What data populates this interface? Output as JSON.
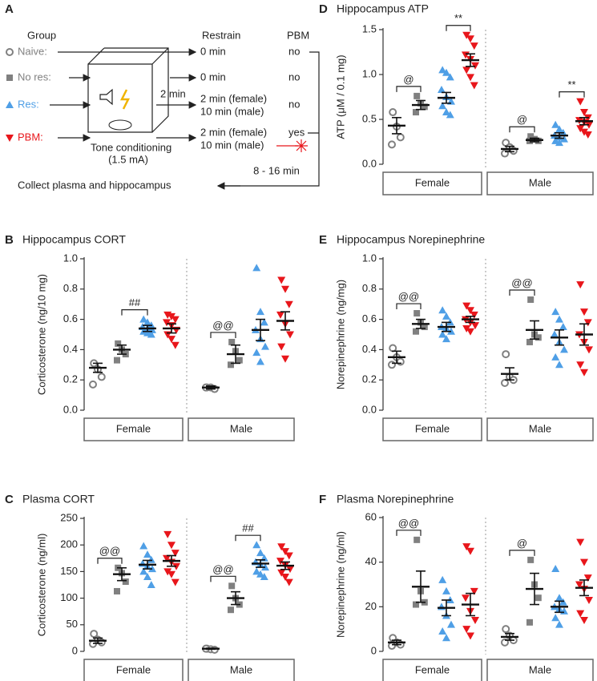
{
  "diagram": {
    "label": "A",
    "headers": {
      "group": "Group",
      "restrain": "Restrain",
      "pbm": "PBM"
    },
    "rows": [
      {
        "group": "Naive:",
        "restrain": [
          "0 min"
        ],
        "pbm": "no"
      },
      {
        "group": "No res:",
        "restrain": [
          "0 min"
        ],
        "pbm": "no"
      },
      {
        "group": "Res:",
        "restrain": [
          "2 min (female)",
          "10 min (male)"
        ],
        "pbm": "no"
      },
      {
        "group": "PBM:",
        "restrain": [
          "2 min (female)",
          "10 min (male)"
        ],
        "pbm": "yes"
      }
    ],
    "box_label": [
      "Tone conditioning",
      "(1.5 mA)"
    ],
    "transfer_time": "2 min",
    "wait_time": "8 - 16 min",
    "outcome": "Collect plasma and hippocampus"
  },
  "chart_data": [
    {
      "type": "dotplot",
      "label": "B",
      "title": "Hippocampus CORT",
      "y_label": "Corticosterone (ng/10 mg)",
      "categories": [
        "Female",
        "Male"
      ],
      "ylim": [
        0,
        1
      ],
      "yticks": [
        {
          "value": 0,
          "label": "0.0"
        },
        0.2,
        0.4,
        0.6,
        0.8,
        {
          "value": 1,
          "label": "1.0"
        }
      ],
      "series": [
        {
          "color": "#808080",
          "marker": "circle-open",
          "points": [
            [
              0.31,
              0.27,
              0.22,
              0.17
            ],
            [
              0.15,
              0.15,
              0.14,
              0.15
            ]
          ],
          "mean": [
            0.28,
            0.15
          ],
          "sem": [
            0.03,
            0.01
          ]
        },
        {
          "color": "#808080",
          "marker": "square",
          "points": [
            [
              0.44,
              0.4,
              0.37,
              0.33
            ],
            [
              0.45,
              0.39,
              0.33,
              0.3
            ]
          ],
          "mean": [
            0.4,
            0.37
          ],
          "sem": [
            0.03,
            0.06
          ]
        },
        {
          "color": "#4f9fe6",
          "marker": "triangle-up",
          "points": [
            [
              0.6,
              0.58,
              0.56,
              0.55,
              0.54,
              0.53,
              0.52,
              0.51,
              0.5
            ],
            [
              0.94,
              0.65,
              0.58,
              0.53,
              0.47,
              0.42,
              0.38,
              0.32
            ]
          ],
          "mean": [
            0.54,
            0.53
          ],
          "sem": [
            0.02,
            0.07
          ]
        },
        {
          "color": "#e8161b",
          "marker": "triangle-down",
          "points": [
            [
              0.63,
              0.62,
              0.6,
              0.58,
              0.56,
              0.53,
              0.5,
              0.47,
              0.43
            ],
            [
              0.86,
              0.8,
              0.7,
              0.63,
              0.57,
              0.5,
              0.42,
              0.34
            ]
          ],
          "mean": [
            0.54,
            0.59
          ],
          "sem": [
            0.03,
            0.06
          ]
        }
      ],
      "annotations": [
        {
          "text": "##",
          "category": 0,
          "between": [
            1,
            2
          ]
        },
        {
          "text": "@@",
          "category": 1,
          "between": [
            0,
            1
          ]
        }
      ]
    },
    {
      "type": "dotplot",
      "label": "C",
      "title": "Plasma CORT",
      "y_label": "Corticosterone (ng/ml)",
      "categories": [
        "Female",
        "Male"
      ],
      "ylim": [
        0,
        250
      ],
      "yticks": [
        0,
        50,
        100,
        150,
        200,
        250
      ],
      "series": [
        {
          "color": "#808080",
          "marker": "circle-open",
          "points": [
            [
              33,
              22,
              17,
              14
            ],
            [
              5,
              4,
              3,
              5
            ]
          ],
          "mean": [
            20,
            5
          ],
          "sem": [
            5,
            1
          ]
        },
        {
          "color": "#808080",
          "marker": "square",
          "points": [
            [
              157,
              147,
              131,
              113
            ],
            [
              123,
              100,
              88,
              78
            ]
          ],
          "mean": [
            145,
            100
          ],
          "sem": [
            12,
            12
          ]
        },
        {
          "color": "#4f9fe6",
          "marker": "triangle-up",
          "points": [
            [
              198,
              182,
              172,
              165,
              160,
              155,
              150,
              140,
              125
            ],
            [
              200,
              185,
              175,
              168,
              163,
              158,
              150,
              145,
              140
            ]
          ],
          "mean": [
            163,
            165
          ],
          "sem": [
            8,
            7
          ]
        },
        {
          "color": "#e8161b",
          "marker": "triangle-down",
          "points": [
            [
              220,
              200,
              185,
              175,
              168,
              160,
              150,
              145,
              130
            ],
            [
              197,
              188,
              180,
              170,
              162,
              155,
              148,
              140,
              130
            ]
          ],
          "mean": [
            170,
            161
          ],
          "sem": [
            10,
            7
          ]
        }
      ],
      "annotations": [
        {
          "text": "@@",
          "category": 0,
          "between": [
            0,
            1
          ]
        },
        {
          "text": "@@",
          "category": 1,
          "between": [
            0,
            1
          ]
        },
        {
          "text": "##",
          "category": 1,
          "between": [
            1,
            2
          ]
        }
      ]
    },
    {
      "type": "dotplot",
      "label": "D",
      "title": "Hippocampus ATP",
      "y_label": "ATP (μM / 0.1 mg)",
      "categories": [
        "Female",
        "Male"
      ],
      "ylim": [
        0,
        1.5
      ],
      "yticks": [
        {
          "value": 0,
          "label": "0.0"
        },
        0.5,
        {
          "value": 1,
          "label": "1.0"
        },
        1.5
      ],
      "series": [
        {
          "color": "#808080",
          "marker": "circle-open",
          "points": [
            [
              0.58,
              0.42,
              0.3,
              0.22
            ],
            [
              0.24,
              0.19,
              0.15,
              0.12
            ]
          ],
          "mean": [
            0.43,
            0.17
          ],
          "sem": [
            0.09,
            0.03
          ]
        },
        {
          "color": "#808080",
          "marker": "square",
          "points": [
            [
              0.76,
              0.68,
              0.64,
              0.58
            ],
            [
              0.31,
              0.28,
              0.26,
              0.26
            ]
          ],
          "mean": [
            0.66,
            0.27
          ],
          "sem": [
            0.05,
            0.02
          ]
        },
        {
          "color": "#4f9fe6",
          "marker": "triangle-up",
          "points": [
            [
              1.05,
              1.02,
              0.97,
              0.83,
              0.75,
              0.7,
              0.65,
              0.58,
              0.55
            ],
            [
              0.44,
              0.39,
              0.35,
              0.32,
              0.3,
              0.28,
              0.26,
              0.24
            ]
          ],
          "mean": [
            0.74,
            0.32
          ],
          "sem": [
            0.06,
            0.03
          ]
        },
        {
          "color": "#e8161b",
          "marker": "triangle-down",
          "points": [
            [
              1.44,
              1.4,
              1.32,
              1.22,
              1.17,
              1.1,
              1.05,
              0.97,
              0.88
            ],
            [
              0.7,
              0.58,
              0.52,
              0.49,
              0.47,
              0.44,
              0.4,
              0.36,
              0.33
            ]
          ],
          "mean": [
            1.16,
            0.48
          ],
          "sem": [
            0.07,
            0.04
          ]
        }
      ],
      "annotations": [
        {
          "text": "@",
          "category": 0,
          "between": [
            0,
            1
          ]
        },
        {
          "text": "**",
          "category": 0,
          "between": [
            2,
            3
          ]
        },
        {
          "text": "@",
          "category": 1,
          "between": [
            0,
            1
          ]
        },
        {
          "text": "**",
          "category": 1,
          "between": [
            2,
            3
          ]
        }
      ]
    },
    {
      "type": "dotplot",
      "label": "E",
      "title": "Hippocampus Norepinephrine",
      "y_label": "Norepinephrine (ng/mg)",
      "categories": [
        "Female",
        "Male"
      ],
      "ylim": [
        0,
        1
      ],
      "yticks": [
        {
          "value": 0,
          "label": "0.0"
        },
        0.2,
        0.4,
        0.6,
        0.8,
        {
          "value": 1,
          "label": "1.0"
        }
      ],
      "series": [
        {
          "color": "#808080",
          "marker": "circle-open",
          "points": [
            [
              0.41,
              0.35,
              0.32,
              0.3
            ],
            [
              0.37,
              0.22,
              0.2,
              0.18
            ]
          ],
          "mean": [
            0.35,
            0.24
          ],
          "sem": [
            0.04,
            0.04
          ]
        },
        {
          "color": "#808080",
          "marker": "square",
          "points": [
            [
              0.64,
              0.58,
              0.55,
              0.52
            ],
            [
              0.73,
              0.5,
              0.48,
              0.45
            ]
          ],
          "mean": [
            0.57,
            0.53
          ],
          "sem": [
            0.03,
            0.06
          ]
        },
        {
          "color": "#4f9fe6",
          "marker": "triangle-up",
          "points": [
            [
              0.66,
              0.62,
              0.58,
              0.55,
              0.54,
              0.52,
              0.5,
              0.47
            ],
            [
              0.65,
              0.6,
              0.55,
              0.5,
              0.45,
              0.4,
              0.35,
              0.3
            ]
          ],
          "mean": [
            0.55,
            0.48
          ],
          "sem": [
            0.03,
            0.05
          ]
        },
        {
          "color": "#e8161b",
          "marker": "triangle-down",
          "points": [
            [
              0.69,
              0.66,
              0.63,
              0.6,
              0.58,
              0.56,
              0.54,
              0.52
            ],
            [
              0.83,
              0.65,
              0.58,
              0.5,
              0.45,
              0.4,
              0.3,
              0.25
            ]
          ],
          "mean": [
            0.6,
            0.5
          ],
          "sem": [
            0.02,
            0.07
          ]
        }
      ],
      "annotations": [
        {
          "text": "@@",
          "category": 0,
          "between": [
            0,
            1
          ]
        },
        {
          "text": "@@",
          "category": 1,
          "between": [
            0,
            1
          ]
        }
      ]
    },
    {
      "type": "dotplot",
      "label": "F",
      "title": "Plasma Norepinephrine",
      "y_label": "Norepinephrine (ng/ml)",
      "categories": [
        "Female",
        "Male"
      ],
      "ylim": [
        0,
        60
      ],
      "yticks": [
        0,
        20,
        40,
        60
      ],
      "series": [
        {
          "color": "#808080",
          "marker": "circle-open",
          "points": [
            [
              6,
              4,
              3,
              2.5
            ],
            [
              10,
              7,
              5,
              4
            ]
          ],
          "mean": [
            4,
            6.5
          ],
          "sem": [
            1,
            1.5
          ]
        },
        {
          "color": "#808080",
          "marker": "square",
          "points": [
            [
              50,
              27,
              22,
              21
            ],
            [
              41,
              30,
              24,
              13
            ]
          ],
          "mean": [
            29,
            28
          ],
          "sem": [
            7,
            7
          ]
        },
        {
          "color": "#4f9fe6",
          "marker": "triangle-up",
          "points": [
            [
              32,
              27,
              23,
              20,
              16,
              12,
              9,
              6
            ],
            [
              37,
              24,
              22,
              20,
              19,
              18,
              15,
              12
            ]
          ],
          "mean": [
            19.5,
            20
          ],
          "sem": [
            3.5,
            2.5
          ]
        },
        {
          "color": "#e8161b",
          "marker": "triangle-down",
          "points": [
            [
              47,
              45,
              27,
              24,
              18,
              14,
              10,
              7
            ],
            [
              49,
              40,
              33,
              30,
              28,
              23,
              17,
              14
            ]
          ],
          "mean": [
            21,
            28.5
          ],
          "sem": [
            5,
            3.5
          ]
        }
      ],
      "annotations": [
        {
          "text": "@@",
          "category": 0,
          "between": [
            0,
            1
          ]
        },
        {
          "text": "@",
          "category": 1,
          "between": [
            0,
            1
          ]
        }
      ]
    }
  ]
}
